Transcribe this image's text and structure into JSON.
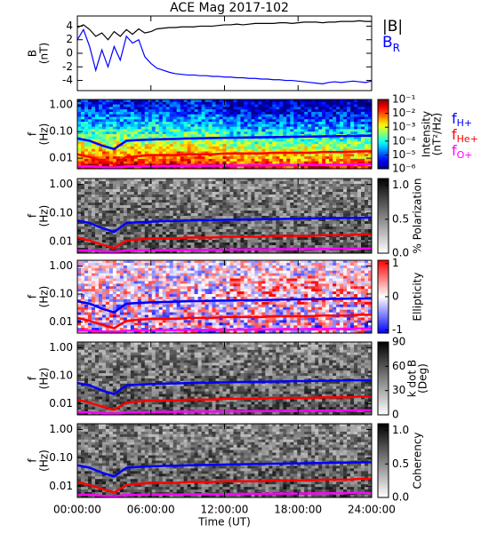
{
  "chart_data": [
    {
      "type": "line",
      "title": "ACE Mag 2017-102",
      "ylabel": [
        "B",
        "(nT)"
      ],
      "ylim": [
        -5.5,
        5.5
      ],
      "yticks": [
        4,
        2,
        0,
        -2,
        -4
      ],
      "x": [
        0,
        0.5,
        1,
        1.5,
        2,
        2.5,
        3,
        3.5,
        4,
        4.5,
        5,
        5.5,
        6,
        6.5,
        7,
        7.5,
        8,
        8.5,
        9,
        9.5,
        10,
        10.5,
        11,
        11.5,
        12,
        12.5,
        13,
        13.5,
        14,
        14.5,
        15,
        15.5,
        16,
        16.5,
        17,
        17.5,
        18,
        18.5,
        19,
        19.5,
        20,
        20.5,
        21,
        21.5,
        22,
        22.5,
        23,
        23.5,
        24
      ],
      "series": [
        {
          "name": "|B|",
          "color": "#000000",
          "values": [
            3.8,
            4.2,
            3.5,
            2.5,
            3.0,
            2.0,
            3.2,
            2.5,
            3.5,
            2.8,
            3.6,
            3.0,
            3.2,
            3.6,
            3.7,
            3.8,
            3.8,
            3.9,
            3.9,
            3.9,
            4.0,
            4.0,
            4.0,
            4.1,
            4.2,
            4.2,
            4.3,
            4.2,
            4.3,
            4.4,
            4.4,
            4.4,
            4.4,
            4.5,
            4.5,
            4.4,
            4.5,
            4.6,
            4.6,
            4.6,
            4.5,
            4.6,
            4.6,
            4.7,
            4.7,
            4.7,
            4.8,
            4.7,
            4.7
          ]
        },
        {
          "name": "B",
          "sub": "R",
          "color": "#0000ff",
          "values": [
            2.0,
            3.5,
            1.0,
            -2.5,
            0.5,
            -2.0,
            1.0,
            -1.0,
            2.5,
            1.5,
            2.0,
            -0.5,
            -1.5,
            -2.2,
            -2.5,
            -2.8,
            -3.0,
            -3.1,
            -3.2,
            -3.2,
            -3.3,
            -3.3,
            -3.4,
            -3.4,
            -3.5,
            -3.5,
            -3.6,
            -3.6,
            -3.7,
            -3.7,
            -3.8,
            -3.8,
            -3.9,
            -3.9,
            -4.0,
            -4.0,
            -4.1,
            -4.2,
            -4.3,
            -4.4,
            -4.5,
            -4.3,
            -4.2,
            -4.3,
            -4.2,
            -4.1,
            -4.2,
            -4.3,
            -4.1
          ]
        }
      ]
    },
    {
      "type": "spectrogram",
      "ylabel": [
        "f",
        "(Hz)"
      ],
      "ylog": true,
      "ylim": [
        0.004,
        1.6
      ],
      "yticks": [
        {
          "value": 1,
          "label": "1.00"
        },
        {
          "value": 0.1,
          "label": "0.10"
        },
        {
          "value": 0.01,
          "label": "0.01"
        }
      ],
      "colormap": "jet",
      "zlog": true,
      "zlim": [
        1e-06,
        0.1
      ],
      "zticks": [
        {
          "value": 0.1,
          "label": "10⁻¹"
        },
        {
          "value": 0.01,
          "label": "10⁻²"
        },
        {
          "value": 0.001,
          "label": "10⁻³"
        },
        {
          "value": 0.0001,
          "label": "10⁻⁴"
        },
        {
          "value": 1e-05,
          "label": "10⁻⁵"
        },
        {
          "value": 1e-06,
          "label": "10⁻⁶"
        }
      ],
      "zlabel": [
        "Intensity",
        "(nT²/Hz)"
      ],
      "x": [
        0,
        1,
        2,
        3,
        4,
        5,
        6,
        7,
        8,
        9,
        10,
        11,
        12,
        13,
        14,
        15,
        16,
        17,
        18,
        19,
        20,
        21,
        22,
        23,
        24
      ],
      "series": [
        {
          "name": "f",
          "sub": "H+",
          "color": "#0000ff",
          "values": [
            0.055,
            0.045,
            0.03,
            0.022,
            0.045,
            0.048,
            0.05,
            0.052,
            0.053,
            0.055,
            0.056,
            0.057,
            0.058,
            0.059,
            0.06,
            0.061,
            0.062,
            0.063,
            0.064,
            0.065,
            0.066,
            0.067,
            0.068,
            0.069,
            0.07
          ]
        },
        {
          "name": "f",
          "sub": "He+",
          "color": "#ff0000",
          "values": [
            0.014,
            0.011,
            0.008,
            0.006,
            0.011,
            0.012,
            0.013,
            0.013,
            0.013,
            0.014,
            0.014,
            0.014,
            0.015,
            0.015,
            0.015,
            0.015,
            0.016,
            0.016,
            0.016,
            0.016,
            0.017,
            0.017,
            0.017,
            0.018,
            0.018
          ]
        },
        {
          "name": "f",
          "sub": "O+",
          "color": "#ff00ff",
          "values": [
            0.005,
            0.005,
            0.0046,
            0.0044,
            0.0049,
            0.005,
            0.005,
            0.0051,
            0.0051,
            0.0052,
            0.0052,
            0.0052,
            0.0053,
            0.0053,
            0.0054,
            0.0054,
            0.0055,
            0.0055,
            0.0055,
            0.0056,
            0.0056,
            0.0057,
            0.0057,
            0.0058,
            0.0058
          ]
        }
      ]
    },
    {
      "type": "spectrogram",
      "ylabel": [
        "f",
        "(Hz)"
      ],
      "ylog": true,
      "ylim": [
        0.004,
        1.6
      ],
      "yticks": [
        {
          "value": 1,
          "label": "1.00"
        },
        {
          "value": 0.1,
          "label": "0.10"
        },
        {
          "value": 0.01,
          "label": "0.01"
        }
      ],
      "colormap": "gray",
      "zlim": [
        0,
        1.1
      ],
      "zticks": [
        {
          "value": 0,
          "label": "0.0"
        },
        {
          "value": 0.5,
          "label": "0.5"
        },
        {
          "value": 1,
          "label": "1.0"
        }
      ],
      "zlabel": [
        "% Polarization"
      ]
    },
    {
      "type": "spectrogram",
      "ylabel": [
        "f",
        "(Hz)"
      ],
      "ylog": true,
      "ylim": [
        0.004,
        1.6
      ],
      "yticks": [
        {
          "value": 1,
          "label": "1.00"
        },
        {
          "value": 0.1,
          "label": "0.10"
        },
        {
          "value": 0.01,
          "label": "0.01"
        }
      ],
      "colormap": "bwr",
      "zlim": [
        -1.1,
        1.1
      ],
      "zticks": [
        1,
        0,
        -1
      ],
      "zlabel": [
        "Ellipticity"
      ]
    },
    {
      "type": "spectrogram",
      "ylabel": [
        "f",
        "(Hz)"
      ],
      "ylog": true,
      "ylim": [
        0.004,
        1.6
      ],
      "yticks": [
        {
          "value": 1,
          "label": "1.00"
        },
        {
          "value": 0.1,
          "label": "0.10"
        },
        {
          "value": 0.01,
          "label": "0.01"
        }
      ],
      "colormap": "gray",
      "zlim": [
        0,
        90
      ],
      "zticks": [
        90,
        60,
        30,
        0
      ],
      "zlabel": [
        "k dot B",
        "(Deg)"
      ]
    },
    {
      "type": "spectrogram",
      "ylabel": [
        "f",
        "(Hz)"
      ],
      "ylog": true,
      "ylim": [
        0.004,
        1.6
      ],
      "yticks": [
        {
          "value": 1,
          "label": "1.00"
        },
        {
          "value": 0.1,
          "label": "0.10"
        },
        {
          "value": 0.01,
          "label": "0.01"
        }
      ],
      "colormap": "gray",
      "zlim": [
        0,
        1.1
      ],
      "zticks": [
        {
          "value": 0,
          "label": "0.0"
        },
        {
          "value": 0.5,
          "label": "0.5"
        },
        {
          "value": 1,
          "label": "1.0"
        }
      ],
      "zlabel": [
        "Coherency"
      ],
      "xlim": [
        0,
        24
      ],
      "xticks": [
        {
          "value": 0,
          "label": "00:00:00"
        },
        {
          "value": 6,
          "label": "06:00:00"
        },
        {
          "value": 12,
          "label": "12:00:00"
        },
        {
          "value": 18,
          "label": "18:00:00"
        },
        {
          "value": 24,
          "label": "24:00:00"
        }
      ],
      "xlabel": "Time (UT)"
    }
  ]
}
